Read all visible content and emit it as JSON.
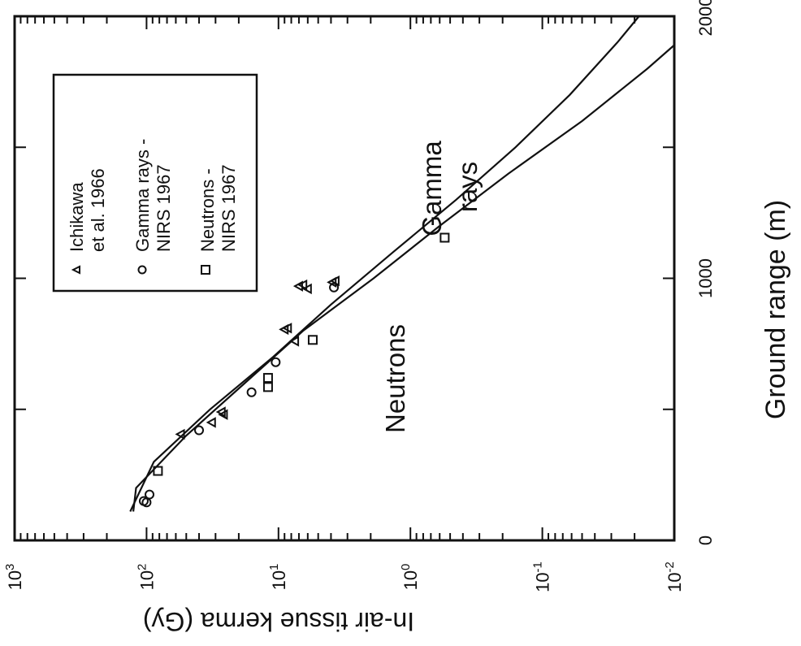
{
  "chart_data": {
    "type": "scatter",
    "xlabel": "Ground range (m)",
    "ylabel": "In-air tissue kerma (Gy)",
    "xlim": [
      0,
      2000
    ],
    "ylim": [
      0.01,
      1000
    ],
    "yscale": "log",
    "x_ticks": [
      {
        "value": 0,
        "label": "0"
      },
      {
        "value": 1000,
        "label": "1000"
      },
      {
        "value": 2000,
        "label": "2000"
      }
    ],
    "y_ticks": [
      {
        "value": 1000,
        "base": "10",
        "exp": "3"
      },
      {
        "value": 100,
        "base": "10",
        "exp": "2"
      },
      {
        "value": 10,
        "base": "10",
        "exp": "1"
      },
      {
        "value": 1,
        "base": "10",
        "exp": "0"
      },
      {
        "value": 0.1,
        "base": "10",
        "exp": "-1"
      },
      {
        "value": 0.01,
        "base": "10",
        "exp": "-2"
      }
    ],
    "legend": {
      "placement": "upper-left (rotated)",
      "entries": [
        {
          "marker": "triangle",
          "line1": "Ichikawa",
          "line2": "et al. 1966"
        },
        {
          "marker": "circle",
          "line1": "Gamma rays -",
          "line2": "NIRS 1967"
        },
        {
          "marker": "square",
          "line1": "Neutrons -",
          "line2": "NIRS 1967"
        }
      ]
    },
    "annotations": {
      "gamma_line1": "Gamma",
      "gamma_line2": "rays",
      "neutrons": "Neutrons"
    },
    "series": [
      {
        "name": "Ichikawa et al. 1966",
        "marker": "triangle",
        "points": [
          [
            405,
            55
          ],
          [
            450,
            32
          ],
          [
            480,
            26
          ],
          [
            490,
            27
          ],
          [
            760,
            7.5
          ],
          [
            805,
            9
          ],
          [
            810,
            8.5
          ],
          [
            960,
            6
          ],
          [
            970,
            7
          ],
          [
            975,
            6.5
          ],
          [
            985,
            3.9
          ],
          [
            990,
            3.7
          ]
        ]
      },
      {
        "name": "Gamma rays - NIRS 1967",
        "marker": "circle",
        "points": [
          [
            145,
            100
          ],
          [
            150,
            105
          ],
          [
            175,
            95
          ],
          [
            420,
            40
          ],
          [
            565,
            16
          ],
          [
            680,
            10.5
          ],
          [
            965,
            3.8
          ]
        ]
      },
      {
        "name": "Neutrons - NIRS 1967",
        "marker": "square",
        "points": [
          [
            265,
            82
          ],
          [
            585,
            12
          ],
          [
            620,
            12
          ],
          [
            765,
            5.5
          ],
          [
            1155,
            0.55
          ]
        ]
      }
    ],
    "curves": [
      {
        "name": "Gamma rays",
        "points": [
          [
            110,
            133
          ],
          [
            300,
            88
          ],
          [
            500,
            33
          ],
          [
            700,
            11
          ],
          [
            900,
            4
          ],
          [
            1100,
            1.35
          ],
          [
            1300,
            0.45
          ],
          [
            1500,
            0.16
          ],
          [
            1700,
            0.062
          ],
          [
            1900,
            0.027
          ],
          [
            2000,
            0.0185
          ]
        ]
      },
      {
        "name": "Neutrons",
        "points": [
          [
            110,
            126
          ],
          [
            200,
            120
          ],
          [
            400,
            50
          ],
          [
            600,
            18
          ],
          [
            800,
            6.5
          ],
          [
            1000,
            1.9
          ],
          [
            1200,
            0.6
          ],
          [
            1400,
            0.18
          ],
          [
            1600,
            0.05
          ],
          [
            1800,
            0.016
          ],
          [
            1890,
            0.01
          ]
        ]
      }
    ]
  }
}
